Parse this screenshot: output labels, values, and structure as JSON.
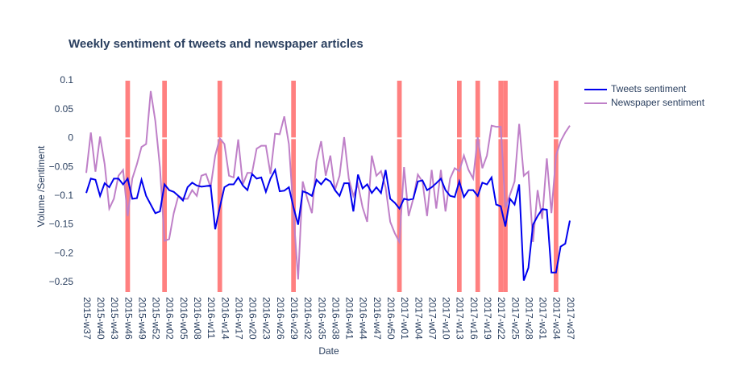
{
  "chart_data": {
    "type": "line",
    "title": "Weekly sentiment of tweets and newspaper articles",
    "xlabel": "Date",
    "ylabel": "Volume /Sentiment",
    "categories": [
      "2015-w37",
      null,
      null,
      "2015-w40",
      null,
      null,
      "2015-w43",
      null,
      null,
      "2015-w46",
      null,
      null,
      "2015-w49",
      null,
      null,
      "2015-w52",
      null,
      null,
      "2016-w02",
      null,
      null,
      "2016-w05",
      null,
      null,
      "2016-w08",
      null,
      null,
      "2016-w11",
      null,
      null,
      "2016-w14",
      null,
      null,
      "2016-w17",
      null,
      null,
      "2016-w20",
      null,
      null,
      "2016-w23",
      null,
      null,
      "2016-w26",
      null,
      null,
      "2016-w29",
      null,
      null,
      "2016-w32",
      null,
      null,
      "2016-w35",
      null,
      null,
      "2016-w38",
      null,
      null,
      "2016-w41",
      null,
      null,
      "2016-w44",
      null,
      null,
      "2016-w47",
      null,
      null,
      "2016-w50",
      null,
      null,
      "2017-w01",
      null,
      null,
      "2017-w04",
      null,
      null,
      "2017-w07",
      null,
      null,
      "2017-w10",
      null,
      null,
      "2017-w13",
      null,
      null,
      "2017-w16",
      null,
      null,
      "2017-w19",
      null,
      null,
      "2017-w22",
      null,
      null,
      "2017-w25",
      null,
      null,
      "2017-w28",
      null,
      null,
      "2017-w31",
      null,
      null,
      "2017-w34",
      null,
      null,
      "2017-w37"
    ],
    "series": [
      {
        "name": "Tweets sentiment",
        "color": "#0000ee",
        "values": [
          -0.095,
          -0.07,
          -0.072,
          -0.1,
          -0.078,
          -0.085,
          -0.07,
          -0.07,
          -0.08,
          -0.07,
          -0.105,
          -0.104,
          -0.072,
          -0.1,
          -0.115,
          -0.13,
          -0.127,
          -0.08,
          -0.09,
          -0.093,
          -0.1,
          -0.108,
          -0.085,
          -0.077,
          -0.082,
          -0.084,
          -0.083,
          -0.082,
          -0.158,
          -0.12,
          -0.085,
          -0.08,
          -0.08,
          -0.068,
          -0.082,
          -0.09,
          -0.062,
          -0.07,
          -0.068,
          -0.093,
          -0.07,
          -0.055,
          -0.092,
          -0.091,
          -0.085,
          -0.12,
          -0.15,
          -0.092,
          -0.095,
          -0.1,
          -0.072,
          -0.08,
          -0.07,
          -0.075,
          -0.09,
          -0.1,
          -0.078,
          -0.078,
          -0.127,
          -0.063,
          -0.087,
          -0.08,
          -0.095,
          -0.085,
          -0.095,
          -0.055,
          -0.105,
          -0.112,
          -0.122,
          -0.105,
          -0.107,
          -0.105,
          -0.075,
          -0.073,
          -0.09,
          -0.085,
          -0.078,
          -0.07,
          -0.09,
          -0.1,
          -0.102,
          -0.075,
          -0.102,
          -0.09,
          -0.09,
          -0.1,
          -0.077,
          -0.08,
          -0.068,
          -0.115,
          -0.118,
          -0.153,
          -0.105,
          -0.115,
          -0.08,
          -0.247,
          -0.225,
          -0.15,
          -0.135,
          -0.123,
          -0.124,
          -0.233,
          -0.233,
          -0.188,
          -0.183,
          -0.143
        ]
      },
      {
        "name": "Newspaper sentiment",
        "color": "#bf80c8",
        "values": [
          -0.06,
          0.01,
          -0.058,
          0.003,
          -0.045,
          -0.122,
          -0.105,
          -0.065,
          -0.055,
          -0.135,
          -0.07,
          -0.045,
          -0.015,
          -0.01,
          0.082,
          0.03,
          -0.05,
          -0.178,
          -0.175,
          -0.13,
          -0.1,
          -0.105,
          -0.105,
          -0.09,
          -0.1,
          -0.065,
          -0.062,
          -0.085,
          -0.03,
          0,
          -0.01,
          -0.065,
          -0.068,
          -0.002,
          -0.08,
          -0.06,
          -0.06,
          -0.018,
          -0.013,
          -0.013,
          -0.062,
          0.008,
          0.007,
          0.038,
          -0.01,
          -0.13,
          -0.245,
          -0.075,
          -0.105,
          -0.13,
          -0.04,
          -0.005,
          -0.065,
          -0.03,
          -0.09,
          -0.065,
          0.002,
          -0.07,
          -0.1,
          -0.08,
          -0.12,
          -0.145,
          -0.03,
          -0.065,
          -0.057,
          -0.085,
          -0.145,
          -0.165,
          -0.18,
          -0.05,
          -0.135,
          -0.105,
          -0.063,
          -0.075,
          -0.135,
          -0.055,
          -0.122,
          -0.055,
          -0.127,
          -0.07,
          -0.052,
          -0.057,
          -0.03,
          -0.055,
          -0.07,
          0.002,
          -0.052,
          -0.03,
          0.022,
          0.02,
          0.02,
          -0.12,
          -0.098,
          -0.075,
          0.025,
          -0.065,
          -0.058,
          -0.18,
          -0.09,
          -0.14,
          -0.035,
          -0.13,
          -0.03,
          -0.005,
          0.01,
          0.022
        ]
      }
    ],
    "highlighted": [
      false,
      false,
      false,
      false,
      false,
      false,
      false,
      false,
      false,
      true,
      false,
      false,
      false,
      false,
      false,
      false,
      false,
      true,
      false,
      false,
      false,
      false,
      false,
      false,
      false,
      false,
      false,
      false,
      false,
      true,
      false,
      false,
      false,
      false,
      false,
      false,
      false,
      false,
      false,
      false,
      false,
      false,
      false,
      false,
      false,
      true,
      false,
      false,
      false,
      false,
      false,
      false,
      false,
      false,
      false,
      false,
      false,
      false,
      false,
      false,
      false,
      false,
      false,
      false,
      false,
      false,
      false,
      false,
      true,
      false,
      false,
      false,
      false,
      false,
      false,
      false,
      false,
      false,
      false,
      false,
      false,
      true,
      false,
      false,
      false,
      true,
      false,
      false,
      false,
      false,
      true,
      true,
      false,
      false,
      false,
      false,
      false,
      false,
      false,
      false,
      false,
      false,
      true,
      false,
      false,
      false
    ],
    "highlight_color": "#ff8080",
    "ylim": [
      -0.267,
      0.1
    ],
    "yticks": [
      0.1,
      0.05,
      0,
      {
        "value": -0.05,
        "label": "−0.05"
      },
      {
        "value": -0.1,
        "label": "−0.1"
      },
      {
        "value": -0.15,
        "label": "−0.15"
      },
      {
        "value": -0.2,
        "label": "−0.2"
      },
      {
        "value": -0.25,
        "label": "−0.25"
      }
    ],
    "zeroline": true,
    "legend": "top-right"
  }
}
